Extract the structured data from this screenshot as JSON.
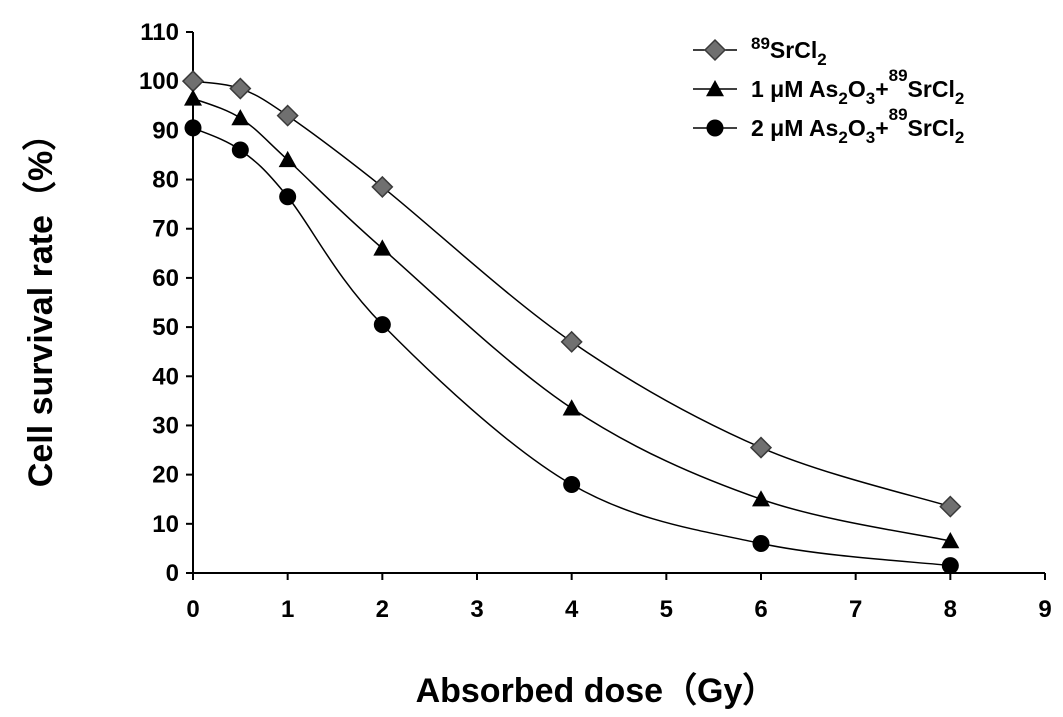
{
  "chart_data": {
    "type": "line",
    "title": "",
    "xlabel": "Absorbed dose（Gy）",
    "ylabel": "Cell survival rate（%）",
    "xlim": [
      0,
      9
    ],
    "ylim": [
      0,
      110
    ],
    "xticks": [
      "0",
      "1",
      "2",
      "3",
      "4",
      "5",
      "6",
      "7",
      "8",
      "9"
    ],
    "yticks": [
      "0",
      "10",
      "20",
      "30",
      "40",
      "50",
      "60",
      "70",
      "80",
      "90",
      "100",
      "110"
    ],
    "grid": false,
    "legend_position": "top-right",
    "x": [
      0,
      0.5,
      1,
      2,
      4,
      6,
      8
    ],
    "series": [
      {
        "name": "⁸⁹SrCl₂",
        "legend": {
          "pre": "",
          "sup": "89",
          "mid": "SrCl",
          "sub": "2",
          "post": ""
        },
        "marker": "diamond",
        "color": "#707070",
        "values": [
          100,
          98.5,
          93,
          78.5,
          47,
          25.5,
          13.5
        ]
      },
      {
        "name": "1 μM As₂O₃+⁸⁹SrCl₂",
        "legend": {
          "pre": "1 μM As",
          "sub1": "2",
          "o": "O",
          "sub2": "3",
          "plus": "+",
          "sup": "89",
          "mid": "SrCl",
          "sub": "2"
        },
        "marker": "triangle",
        "color": "#000000",
        "values": [
          96.5,
          92.5,
          84,
          66,
          33.5,
          15,
          6.5
        ]
      },
      {
        "name": "2 μM As₂O₃+⁸⁹SrCl₂",
        "legend": {
          "pre": "2 μM As",
          "sub1": "2",
          "o": "O",
          "sub2": "3",
          "plus": "+",
          "sup": "89",
          "mid": "SrCl",
          "sub": "2"
        },
        "marker": "circle",
        "color": "#000000",
        "values": [
          90.5,
          86,
          76.5,
          50.5,
          18,
          6,
          1.5
        ]
      }
    ]
  }
}
